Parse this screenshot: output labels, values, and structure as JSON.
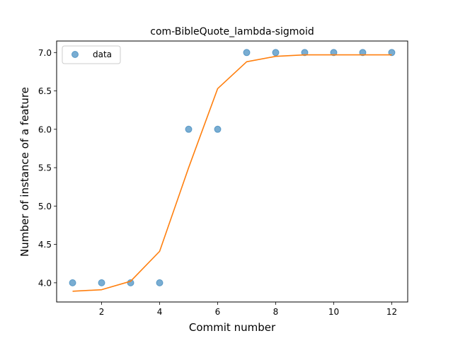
{
  "chart_data": {
    "type": "scatter",
    "title": "com-BibleQuote_lambda-sigmoid",
    "xlabel": "Commit number",
    "ylabel": "Number of instance of a feature",
    "xlim": [
      0.45,
      12.55
    ],
    "ylim": [
      3.75,
      7.15
    ],
    "x_ticks": [
      2,
      4,
      6,
      8,
      10,
      12
    ],
    "x_tick_labels": [
      "2",
      "4",
      "6",
      "8",
      "10",
      "12"
    ],
    "y_ticks": [
      4.0,
      4.5,
      5.0,
      5.5,
      6.0,
      6.5,
      7.0
    ],
    "y_tick_labels": [
      "4.0",
      "4.5",
      "5.0",
      "5.5",
      "6.0",
      "6.5",
      "7.0"
    ],
    "grid": false,
    "legend": {
      "position": "upper-left",
      "entries": [
        "data"
      ]
    },
    "series": [
      {
        "name": "data",
        "kind": "scatter",
        "color": "#1f77b4",
        "x": [
          1,
          2,
          3,
          4,
          5,
          6,
          7,
          8,
          9,
          10,
          11,
          12
        ],
        "y": [
          4,
          4,
          4,
          4,
          6,
          6,
          7,
          7,
          7,
          7,
          7,
          7
        ]
      },
      {
        "kind": "line",
        "color": "#ff7f0e",
        "x": [
          1,
          2,
          3,
          4,
          5,
          6,
          7,
          8,
          9,
          10,
          11,
          12
        ],
        "y": [
          3.89,
          3.91,
          4.02,
          4.41,
          5.5,
          6.53,
          6.88,
          6.95,
          6.97,
          6.97,
          6.97,
          6.97
        ]
      }
    ]
  }
}
